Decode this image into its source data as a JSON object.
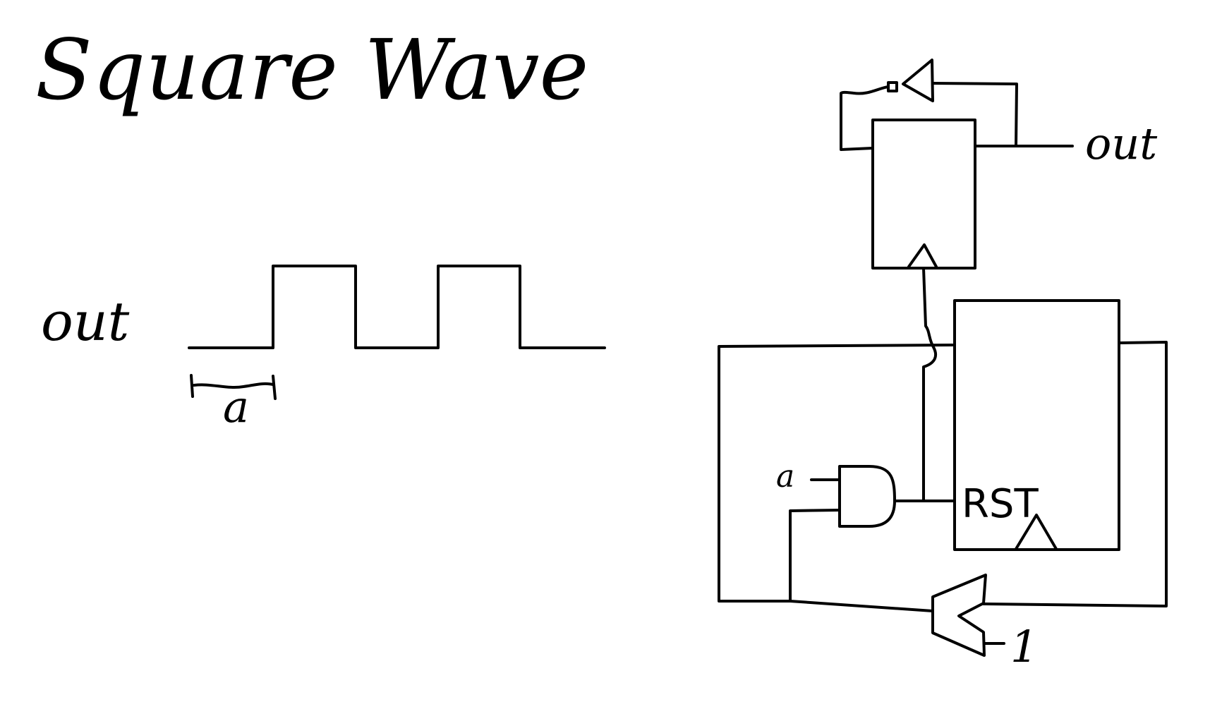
{
  "title": "Square Wave",
  "waveform": {
    "signal_label": "out",
    "period_label": "a"
  },
  "circuit": {
    "output_label": "out",
    "and_gate_input_label": "a",
    "counter_reset_label": "RST",
    "adder_constant_label": "1"
  }
}
